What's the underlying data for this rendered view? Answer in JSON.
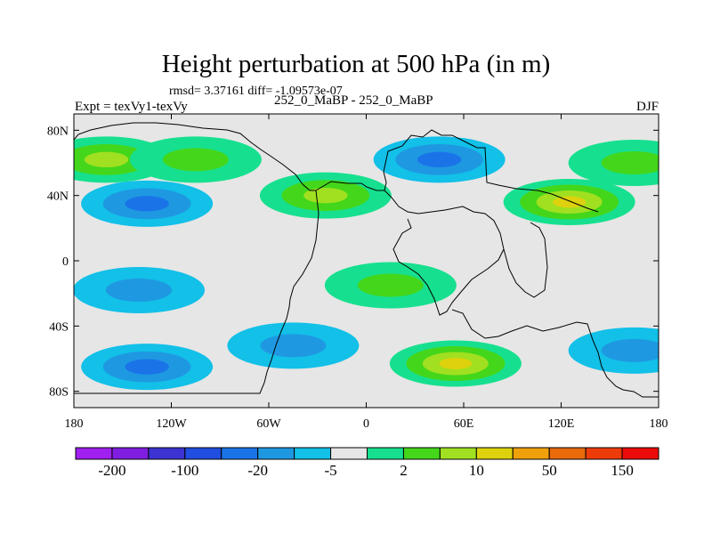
{
  "chart_data": {
    "type": "heatmap",
    "title": "Height perturbation at 500 hPa (in m)",
    "stats_line": "rmsd= 3.37161 diff= -1.09573e-07",
    "left_label": "Expt = texVy1-texVy",
    "center_label": "252_0_MaBP - 252_0_MaBP",
    "right_label": "DJF",
    "x_ticks": [
      "180",
      "120W",
      "60W",
      "0",
      "60E",
      "120E",
      "180"
    ],
    "x_tick_values": [
      -180,
      -120,
      -60,
      0,
      60,
      120,
      180
    ],
    "y_ticks": [
      "80N",
      "40N",
      "0",
      "40S",
      "80S"
    ],
    "y_tick_values": [
      80,
      40,
      0,
      -40,
      -80
    ],
    "xlim": [
      -180,
      180
    ],
    "ylim": [
      -90,
      90
    ],
    "colorbar": {
      "colors": [
        "#a020f0",
        "#7f1ee0",
        "#3c33d2",
        "#1f4ee0",
        "#1a74e8",
        "#1f98e2",
        "#12c0e8",
        "#e6e6e6",
        "#16e08f",
        "#44d61b",
        "#a0e020",
        "#ddd20d",
        "#efa00a",
        "#ea6a0c",
        "#ed3c0a",
        "#ec0b0b"
      ],
      "labels": [
        "-200",
        "-100",
        "-20",
        "-5",
        "2",
        "10",
        "50",
        "150"
      ]
    },
    "anomalies": [
      {
        "lon": -160,
        "lat": 62,
        "level": 2
      },
      {
        "lon": -135,
        "lat": 35,
        "level": -2
      },
      {
        "lon": -105,
        "lat": 62,
        "level": 1
      },
      {
        "lon": -25,
        "lat": 40,
        "level": 2
      },
      {
        "lon": 45,
        "lat": 62,
        "level": -2
      },
      {
        "lon": 125,
        "lat": 36,
        "level": 3
      },
      {
        "lon": 165,
        "lat": 60,
        "level": 1
      },
      {
        "lon": 55,
        "lat": -63,
        "level": 3
      },
      {
        "lon": -135,
        "lat": -65,
        "level": -2
      },
      {
        "lon": -45,
        "lat": -52,
        "level": -1
      },
      {
        "lon": 165,
        "lat": -55,
        "level": -1
      },
      {
        "lon": 15,
        "lat": -15,
        "level": 1
      },
      {
        "lon": -140,
        "lat": -18,
        "level": -1
      }
    ]
  }
}
